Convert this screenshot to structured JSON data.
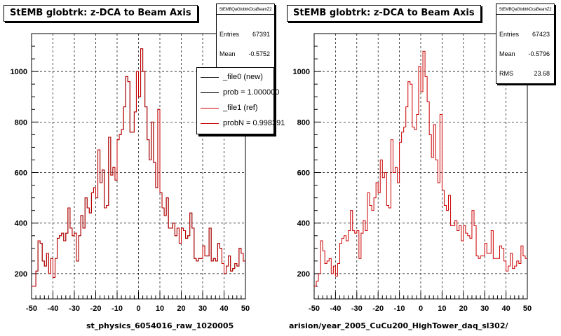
{
  "chart_data": [
    {
      "type": "histogram",
      "title": "StEMB globtrk: z-DCA to Beam Axis",
      "xlabel": "st_physics_6054016_raw_1020005",
      "ylabel": "",
      "xlim": [
        -50,
        50
      ],
      "ylim": [
        100,
        1150
      ],
      "x_ticks": [
        "-50",
        "-40",
        "-30",
        "-20",
        "-10",
        "0",
        "10",
        "20",
        "30",
        "40",
        "50"
      ],
      "y_ticks": [
        "200",
        "400",
        "600",
        "800",
        "1000"
      ],
      "grid": true,
      "bin_edges": {
        "start": -50,
        "step": 1
      },
      "series": [
        {
          "name": "_file0 (new)",
          "color": "#000000",
          "values": [
            150,
            150,
            210,
            330,
            320,
            250,
            230,
            280,
            200,
            260,
            185,
            260,
            340,
            350,
            360,
            330,
            360,
            460,
            380,
            350,
            360,
            250,
            350,
            430,
            380,
            500,
            460,
            440,
            520,
            540,
            500,
            690,
            560,
            610,
            460,
            470,
            740,
            590,
            620,
            570,
            730,
            750,
            770,
            860,
            980,
            960,
            760,
            760,
            840,
            1000,
            900,
            1090,
            1000,
            860,
            730,
            650,
            800,
            640,
            540,
            850,
            520,
            460,
            430,
            500,
            380,
            380,
            400,
            350,
            380,
            320,
            380,
            370,
            340,
            350,
            440,
            380,
            260,
            250,
            260,
            260,
            310,
            270,
            270,
            380,
            250,
            260,
            250,
            320,
            300,
            240,
            200,
            230,
            270,
            210,
            220,
            240,
            230,
            300,
            280,
            250
          ]
        },
        {
          "name": "_file1 (ref)",
          "color": "#cc0000",
          "values": [
            150,
            150,
            210,
            330,
            320,
            250,
            230,
            280,
            200,
            260,
            185,
            260,
            340,
            350,
            360,
            330,
            360,
            460,
            380,
            350,
            360,
            250,
            350,
            430,
            380,
            500,
            460,
            440,
            520,
            540,
            500,
            690,
            560,
            610,
            460,
            470,
            740,
            590,
            620,
            570,
            730,
            750,
            770,
            860,
            980,
            960,
            760,
            760,
            840,
            1000,
            900,
            1090,
            1000,
            860,
            730,
            650,
            800,
            640,
            540,
            850,
            520,
            460,
            430,
            500,
            380,
            380,
            400,
            350,
            380,
            320,
            380,
            370,
            340,
            350,
            440,
            380,
            260,
            250,
            260,
            260,
            310,
            270,
            270,
            380,
            250,
            260,
            250,
            320,
            300,
            240,
            200,
            230,
            270,
            210,
            220,
            240,
            230,
            300,
            280,
            250
          ]
        }
      ],
      "stats": {
        "header": "StEMBQaGlobtrkDcaBeamZ2",
        "entries_label": "Entries",
        "entries": "67391",
        "mean_label": "Mean",
        "mean": "-0.5752"
      },
      "legend": {
        "placement": "top-right",
        "items": [
          {
            "label": "_file0 (new)",
            "color": "#000000"
          },
          {
            "label": "prob = 1.000000",
            "color": "#000000"
          },
          {
            "label": "_file1 (ref)",
            "color": "#cc0000"
          },
          {
            "label": "probN = 0.998391",
            "color": "#cc0000"
          }
        ]
      }
    },
    {
      "type": "histogram",
      "title": "StEMB globtrk: z-DCA to Beam Axis",
      "xlabel": "arision/year_2005_CuCu200_HighTower_daq_sl302/",
      "ylabel": "",
      "xlim": [
        -50,
        50
      ],
      "ylim": [
        100,
        1150
      ],
      "x_ticks": [
        "-50",
        "-40",
        "-30",
        "-20",
        "-10",
        "0",
        "10",
        "20",
        "30",
        "40",
        "50"
      ],
      "y_ticks": [
        "200",
        "400",
        "600",
        "800",
        "1000"
      ],
      "grid": true,
      "bin_edges": {
        "start": -50,
        "step": 1
      },
      "series": [
        {
          "name": "",
          "color": "#cc0000",
          "values": [
            150,
            170,
            200,
            330,
            290,
            240,
            250,
            260,
            200,
            230,
            190,
            240,
            320,
            340,
            350,
            330,
            370,
            450,
            370,
            360,
            370,
            260,
            360,
            410,
            370,
            520,
            470,
            450,
            500,
            560,
            520,
            650,
            580,
            600,
            470,
            460,
            730,
            600,
            620,
            560,
            720,
            760,
            780,
            860,
            960,
            950,
            780,
            770,
            830,
            1020,
            920,
            1080,
            980,
            880,
            750,
            660,
            790,
            650,
            560,
            830,
            530,
            470,
            450,
            510,
            390,
            390,
            410,
            370,
            390,
            330,
            390,
            360,
            350,
            340,
            450,
            390,
            270,
            260,
            270,
            270,
            320,
            280,
            280,
            370,
            260,
            260,
            260,
            310,
            300,
            250,
            210,
            230,
            280,
            220,
            230,
            250,
            240,
            310,
            270,
            260
          ]
        }
      ],
      "stats": {
        "header": "StEMBQaGlobtrkDcaBeamZ2",
        "entries_label": "Entries",
        "entries": "67423",
        "mean_label": "Mean",
        "mean": "-0.5796",
        "rms_label": "RMS",
        "rms": "23.68"
      }
    }
  ]
}
